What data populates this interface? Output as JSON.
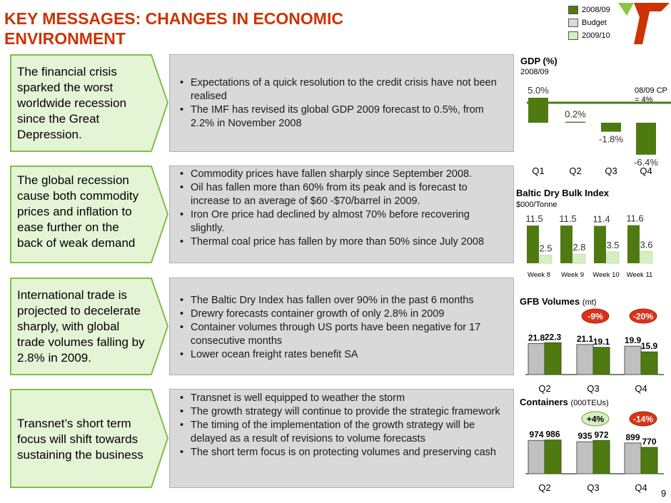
{
  "title": "KEY MESSAGES:  CHANGES IN ECONOMIC ENVIRONMENT",
  "legend": [
    {
      "label": "2008/09",
      "color": "#4f7a12"
    },
    {
      "label": "Budget",
      "color": "#d9d9d9"
    },
    {
      "label": "2009/10",
      "color": "#d5f0c0"
    }
  ],
  "colors": {
    "accent": "#cc3300",
    "green_dark": "#4f7a12",
    "green_light": "#d5f0c0",
    "grey": "#c0c0c0",
    "arrow_fill": "#e4f5d6",
    "arrow_border": "#7fbf4a",
    "badge": "#d9341a"
  },
  "sections": [
    {
      "message": "The financial crisis sparked the worst worldwide recession since the Great Depression.",
      "bullets": [
        "Expectations of a quick resolution to the credit crisis have not been realised",
        "The IMF has revised its global GDP 2009 forecast to 0.5%, from 2.2% in November 2008"
      ]
    },
    {
      "message": "The global recession cause both commodity prices and inflation to ease further on the back of weak demand",
      "bullets": [
        "Commodity prices have fallen sharply since September 2008.",
        "Oil has fallen more than 60% from its peak and is forecast to increase to an average of $60 -$70/barrel in 2009.",
        "Iron Ore price had declined by almost 70% before recovering slightly.",
        "Thermal coal price has fallen by more than 50% since July 2008"
      ]
    },
    {
      "message": "International trade is projected to decelerate sharply, with global trade volumes falling by 2.8% in 2009.",
      "bullets": [
        "The Baltic Dry Index has fallen over 90% in the past 6 months",
        "Drewry forecasts container growth of only 2.8% in 2009",
        "Container volumes through US ports have been negative for 17 consecutive months",
        "Lower ocean freight rates benefit SA"
      ]
    },
    {
      "message": "Transnet’s short term focus will shift towards sustaining the business",
      "bullets": [
        "Transnet is well equipped to weather the storm",
        "The growth strategy will continue to provide the strategic framework",
        "The timing of the implementation of the growth strategy will be delayed as a result of revisions to volume forecasts",
        "The short term focus is on protecting volumes and preserving cash"
      ]
    }
  ],
  "chart_data": [
    {
      "type": "bar",
      "title": "GDP (%)",
      "subtitle": "2008/09",
      "categories": [
        "Q1",
        "Q2",
        "Q3",
        "Q4"
      ],
      "values": [
        5.0,
        0.2,
        -1.8,
        -6.4
      ],
      "labels": [
        "5.0%",
        "0.2%",
        "-1.8%",
        "-6.4%"
      ],
      "reference_line": {
        "value": 4,
        "label_line1": "08/09 CP",
        "label_line2": "= 4%"
      },
      "ylim": [
        -7,
        6
      ]
    },
    {
      "type": "bar",
      "title": "Baltic Dry Bulk Index",
      "subtitle": "$000/Tonne",
      "categories": [
        "Week 8",
        "Week 9",
        "Week 10",
        "Week 11"
      ],
      "series": [
        {
          "name": "2008/09",
          "values": [
            11.5,
            11.5,
            11.4,
            11.6
          ],
          "labels": [
            "11.5",
            "11.5",
            "11.4",
            "11.6"
          ]
        },
        {
          "name": "2009/10",
          "values": [
            2.5,
            2.8,
            3.5,
            3.6
          ],
          "labels": [
            "2.5",
            "2.8",
            "3.5",
            "3.6"
          ]
        }
      ],
      "ylim": [
        0,
        13
      ]
    },
    {
      "type": "bar",
      "title": "GFB Volumes",
      "title_unit": "(mt)",
      "categories": [
        "Q2",
        "Q3",
        "Q4"
      ],
      "series": [
        {
          "name": "Budget",
          "values": [
            21.8,
            21.1,
            19.9
          ],
          "labels": [
            "21.8",
            "21.1",
            "19.9"
          ]
        },
        {
          "name": "2008/09",
          "values": [
            22.3,
            19.1,
            15.9
          ],
          "labels": [
            "22.3",
            "19.1",
            "15.9"
          ]
        }
      ],
      "badges": [
        {
          "category": "Q3",
          "text": "-9%",
          "style": "red"
        },
        {
          "category": "Q4",
          "text": "-20%",
          "style": "red"
        }
      ],
      "ylim": [
        0,
        30
      ]
    },
    {
      "type": "bar",
      "title": "Containers",
      "title_unit": "(000TEUs)",
      "categories": [
        "Q2",
        "Q3",
        "Q4"
      ],
      "series": [
        {
          "name": "Budget",
          "values": [
            974,
            935,
            899
          ],
          "labels": [
            "974",
            "935",
            "899"
          ]
        },
        {
          "name": "2008/09",
          "values": [
            986,
            972,
            770
          ],
          "labels": [
            "986",
            "972",
            "770"
          ]
        }
      ],
      "badges": [
        {
          "category": "Q3",
          "text": "+4%",
          "style": "green"
        },
        {
          "category": "Q4",
          "text": "-14%",
          "style": "red"
        }
      ],
      "ylim": [
        0,
        1300
      ]
    }
  ],
  "page_number": "9"
}
